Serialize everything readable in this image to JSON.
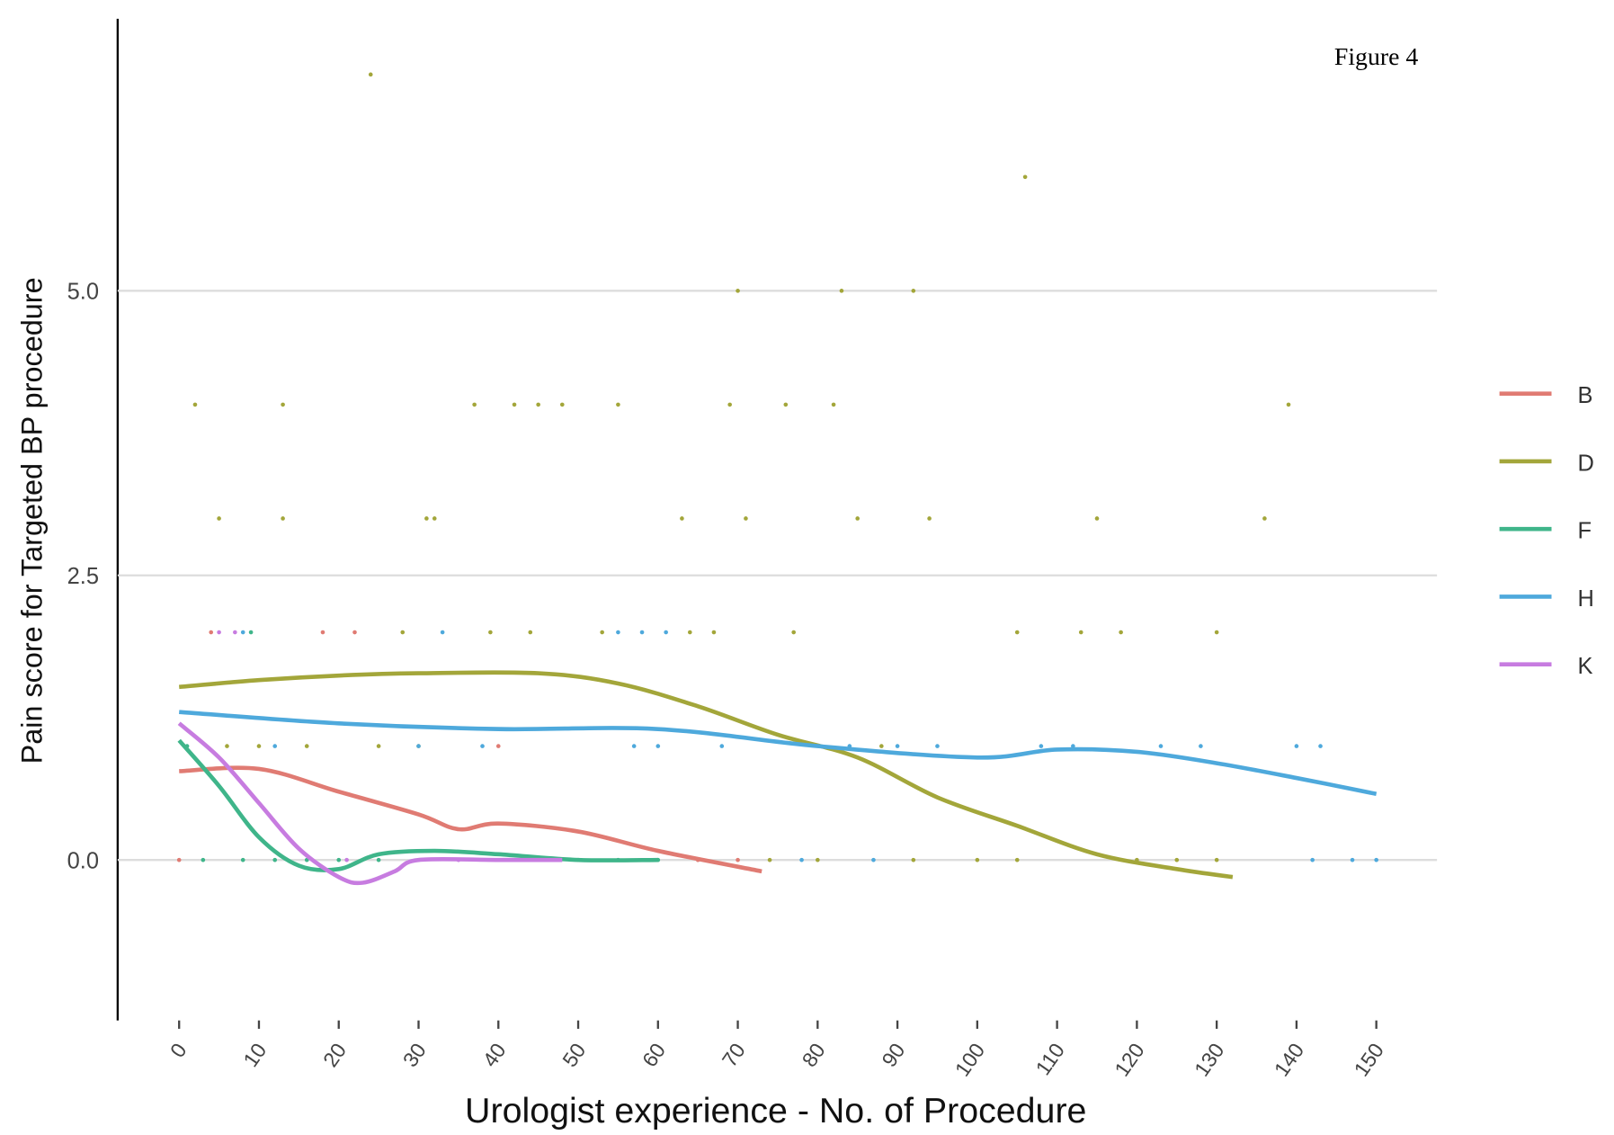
{
  "chart_data": {
    "type": "scatter",
    "title": "Figure 4",
    "x_label": "Urologist experience - No. of Procedure",
    "y_label": "Pain score for Targeted BP procedure",
    "xlim": [
      -7.7,
      157.6
    ],
    "ylim": [
      -1.41,
      7.39
    ],
    "xticks": [
      0,
      10,
      20,
      30,
      40,
      50,
      60,
      70,
      80,
      90,
      100,
      110,
      120,
      130,
      140,
      150
    ],
    "yticks": [
      {
        "value": 0,
        "label": "0.0"
      },
      {
        "value": 2.5,
        "label": "2.5"
      },
      {
        "value": 5,
        "label": "5.0"
      }
    ],
    "grid": true,
    "legend": "right",
    "series": [
      {
        "name": "B",
        "color": "#e07b73",
        "x": [
          0,
          10,
          20,
          30,
          35,
          40,
          50,
          60,
          73
        ],
        "values": [
          0.78,
          0.8,
          0.6,
          0.4,
          0.27,
          0.32,
          0.25,
          0.08,
          -0.1
        ],
        "points_x": [
          0,
          4,
          18,
          22,
          40,
          65,
          70
        ],
        "points_y": [
          0,
          2,
          2,
          2,
          1,
          0,
          0
        ]
      },
      {
        "name": "D",
        "color": "#a3a63a",
        "x": [
          0,
          10,
          20,
          30,
          45,
          55,
          65,
          75,
          85,
          95,
          105,
          115,
          125,
          132
        ],
        "values": [
          1.52,
          1.58,
          1.62,
          1.64,
          1.64,
          1.55,
          1.35,
          1.1,
          0.9,
          0.55,
          0.3,
          0.05,
          -0.08,
          -0.15
        ],
        "points_x": [
          24,
          106,
          70,
          83,
          92,
          2,
          13,
          37,
          42,
          45,
          48,
          55,
          69,
          76,
          82,
          139,
          5,
          13,
          31,
          32,
          63,
          71,
          85,
          94,
          115,
          136,
          28,
          39,
          44,
          53,
          64,
          67,
          77,
          105,
          113,
          118,
          130,
          6,
          10,
          16,
          25,
          30,
          88,
          74,
          80,
          92,
          100,
          105,
          120,
          125,
          130
        ],
        "points_y": [
          6.9,
          6,
          5,
          5,
          5,
          4,
          4,
          4,
          4,
          4,
          4,
          4,
          4,
          4,
          4,
          4,
          3,
          3,
          3,
          3,
          3,
          3,
          3,
          3,
          3,
          3,
          2,
          2,
          2,
          2,
          2,
          2,
          2,
          2,
          2,
          2,
          2,
          1,
          1,
          1,
          1,
          1,
          1,
          0,
          0,
          0,
          0,
          0,
          0,
          0,
          0
        ]
      },
      {
        "name": "F",
        "color": "#3fb58a",
        "x": [
          0,
          5,
          10,
          15,
          20,
          25,
          32,
          40,
          50,
          60
        ],
        "values": [
          1.05,
          0.65,
          0.2,
          -0.05,
          -0.08,
          0.05,
          0.08,
          0.05,
          0,
          0
        ],
        "points_x": [
          1,
          3,
          8,
          12,
          16,
          20,
          25,
          50,
          55,
          60,
          9
        ],
        "points_y": [
          1,
          0,
          0,
          0,
          0,
          0,
          0,
          0,
          0,
          0,
          2
        ]
      },
      {
        "name": "H",
        "color": "#4ea9dc",
        "x": [
          0,
          20,
          40,
          60,
          80,
          100,
          110,
          120,
          130,
          140,
          150
        ],
        "values": [
          1.3,
          1.2,
          1.15,
          1.15,
          1,
          0.9,
          0.97,
          0.95,
          0.85,
          0.72,
          0.58
        ],
        "points_x": [
          8,
          33,
          55,
          58,
          61,
          12,
          30,
          38,
          57,
          60,
          68,
          84,
          90,
          95,
          108,
          112,
          123,
          128,
          140,
          143,
          78,
          87,
          142,
          147,
          150
        ],
        "points_y": [
          2,
          2,
          2,
          2,
          2,
          1,
          1,
          1,
          1,
          1,
          1,
          1,
          1,
          1,
          1,
          1,
          1,
          1,
          1,
          1,
          0,
          0,
          0,
          0,
          0
        ]
      },
      {
        "name": "K",
        "color": "#c77ce0",
        "x": [
          0,
          5,
          10,
          15,
          20,
          23,
          27,
          30,
          40,
          48
        ],
        "values": [
          1.2,
          0.9,
          0.5,
          0.1,
          -0.15,
          -0.2,
          -0.1,
          0,
          0,
          0
        ],
        "points_x": [
          5,
          7,
          21,
          35,
          45
        ],
        "points_y": [
          2,
          2,
          0,
          0,
          0
        ]
      }
    ]
  }
}
